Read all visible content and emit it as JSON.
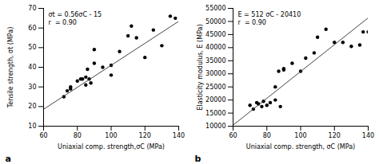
{
  "chart_data": [
    {
      "type": "scatter",
      "title": "a",
      "annotation": "σt = 0.56σC - 15\nr  = 0.90",
      "xlabel": "Uniaxial comp. strength,σC (MPa)",
      "ylabel": "Tensile strength, σt (MPa)",
      "xlim": [
        60,
        140
      ],
      "ylim": [
        10,
        70
      ],
      "xticks": [
        60,
        80,
        100,
        120,
        140
      ],
      "yticks": [
        10,
        20,
        30,
        40,
        50,
        60,
        70
      ],
      "series": [
        {
          "type": "scatter",
          "color": "#000000",
          "x": [
            72,
            74,
            76,
            76,
            80,
            82,
            83,
            85,
            85,
            86,
            87,
            88,
            90,
            90,
            95,
            100,
            100,
            105,
            110,
            112,
            115,
            120,
            125,
            130,
            135,
            138
          ],
          "values": [
            25,
            28,
            30,
            29,
            33,
            34,
            34,
            35,
            31,
            39,
            34,
            32,
            42,
            49,
            40,
            41,
            36,
            48,
            56,
            61,
            55,
            45,
            59,
            51,
            66,
            65
          ]
        },
        {
          "type": "line",
          "color": "#444444",
          "x": [
            60,
            140
          ],
          "values": [
            18.6,
            63.4
          ]
        }
      ]
    },
    {
      "type": "scatter",
      "title": "b",
      "annotation": "E = 512 σC - 20410\nr  = 0.90",
      "xlabel": "Uniaxial comp. strength, σC (MPa)",
      "ylabel": "Elasticity modulus, E (MPa)",
      "xlim": [
        60,
        140
      ],
      "ylim": [
        10000,
        55000
      ],
      "xticks": [
        60,
        80,
        100,
        120,
        140
      ],
      "yticks": [
        10000,
        15000,
        20000,
        25000,
        30000,
        35000,
        40000,
        45000,
        50000,
        55000
      ],
      "series": [
        {
          "type": "scatter",
          "color": "#000000",
          "x": [
            70,
            72,
            74,
            75,
            77,
            78,
            80,
            82,
            85,
            85,
            87,
            88,
            90,
            90,
            95,
            100,
            103,
            108,
            110,
            115,
            120,
            125,
            130,
            135,
            137,
            140
          ],
          "values": [
            18000,
            16500,
            19000,
            18500,
            17500,
            19500,
            18000,
            19000,
            20000,
            25000,
            31000,
            17500,
            32000,
            31500,
            34000,
            31000,
            36000,
            38000,
            44000,
            47000,
            42000,
            42000,
            40500,
            41000,
            46000,
            46000
          ]
        },
        {
          "type": "line",
          "color": "#444444",
          "x": [
            60,
            140
          ],
          "values": [
            10390,
            51390
          ]
        }
      ]
    }
  ]
}
